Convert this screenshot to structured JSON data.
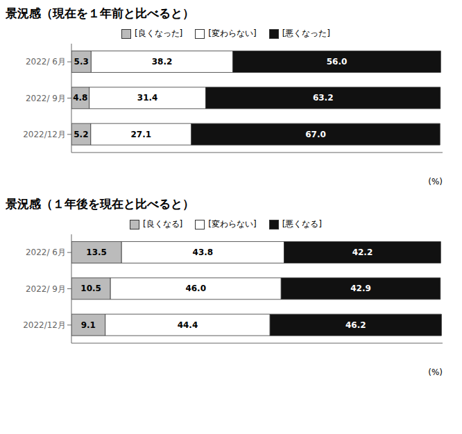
{
  "chart_data": [
    {
      "type": "bar",
      "orientation": "horizontal",
      "stacked": true,
      "title": "景況感（現在を１年前と比べると）",
      "categories": [
        "2022/ 6月",
        "2022/ 9月",
        "2022/12月"
      ],
      "series": [
        {
          "name": "[良くなった]",
          "color": "#bbbbbb",
          "values": [
            5.3,
            4.8,
            5.2
          ]
        },
        {
          "name": "[変わらない]",
          "color": "#ffffff",
          "values": [
            38.2,
            31.4,
            27.1
          ]
        },
        {
          "name": "[悪くなった]",
          "color": "#111111",
          "values": [
            56.0,
            63.2,
            67.0
          ],
          "value_labels": [
            "56.0",
            "63.2",
            "67.0"
          ]
        }
      ],
      "xlim": [
        0,
        100
      ],
      "xlabel": "(%)",
      "data_labels": true,
      "tick_labels": "y",
      "grid": false
    },
    {
      "type": "bar",
      "orientation": "horizontal",
      "stacked": true,
      "title": "景況感（１年後を現在と比べると）",
      "categories": [
        "2022/ 6月",
        "2022/ 9月",
        "2022/12月"
      ],
      "series": [
        {
          "name": "[良くなる]",
          "color": "#bbbbbb",
          "values": [
            13.5,
            10.5,
            9.1
          ]
        },
        {
          "name": "[変わらない]",
          "color": "#ffffff",
          "values": [
            43.8,
            46.0,
            44.4
          ],
          "value_labels": [
            "43.8",
            "46.0",
            "44.4"
          ]
        },
        {
          "name": "[悪くなる]",
          "color": "#111111",
          "values": [
            42.2,
            42.9,
            46.2
          ]
        }
      ],
      "xlim": [
        0,
        100
      ],
      "xlabel": "(%)",
      "data_labels": true,
      "tick_labels": "y",
      "grid": false
    }
  ]
}
